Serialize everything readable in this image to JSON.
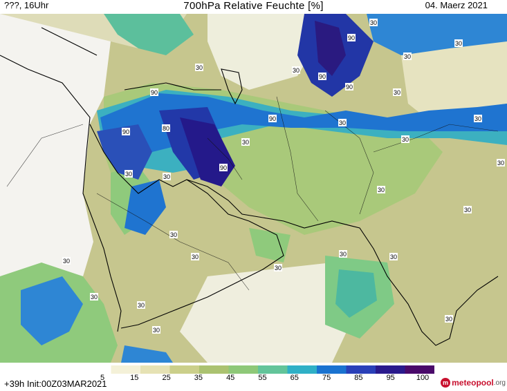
{
  "header": {
    "left_text": "???, 16Uhr",
    "title": "700hPa Relative Feuchte [%]",
    "date": "04. Maerz 2021"
  },
  "footer": {
    "init_text": "+39h  Init:00Z03MAR2021",
    "logo_main": "meteopool",
    "logo_tld": ".org"
  },
  "colorbar": {
    "labels": [
      "5",
      "15",
      "25",
      "35",
      "45",
      "55",
      "65",
      "75",
      "85",
      "95",
      "100"
    ],
    "colors": [
      "#ffffff",
      "#f4f1d8",
      "#e6e2b4",
      "#cbcf8a",
      "#abc270",
      "#8ec878",
      "#63c49a",
      "#2fb0c6",
      "#1a73d0",
      "#2a40b8",
      "#2a1a8c",
      "#4a0a6a"
    ]
  },
  "contour_labels": [
    "30",
    "90",
    "80"
  ],
  "colors": {
    "dry": "#f6f4ee",
    "light": "#d9d6a4",
    "olive": "#c3c58c",
    "green": "#8fca7c",
    "teal": "#47b8a8",
    "cyan": "#30a7d6",
    "blue": "#1c6ed2",
    "deep_blue": "#2432a8",
    "violet": "#2b1880"
  }
}
